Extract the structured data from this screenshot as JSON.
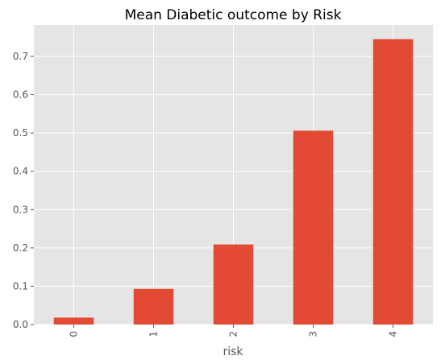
{
  "chart_data": {
    "type": "bar",
    "title": "Mean Diabetic outcome by Risk",
    "xlabel": "risk",
    "ylabel": "",
    "categories": [
      "0",
      "1",
      "2",
      "3",
      "4"
    ],
    "values": [
      0.018,
      0.093,
      0.209,
      0.506,
      0.745
    ],
    "ylim": [
      0,
      0.782
    ],
    "yticks": [
      0.0,
      0.1,
      0.2,
      0.3,
      0.4,
      0.5,
      0.6,
      0.7
    ],
    "ytick_labels": [
      "0.0",
      "0.1",
      "0.2",
      "0.3",
      "0.4",
      "0.5",
      "0.6",
      "0.7"
    ],
    "grid": true,
    "bar_color": "#e24a33",
    "plot_background": "#e5e5e5"
  }
}
